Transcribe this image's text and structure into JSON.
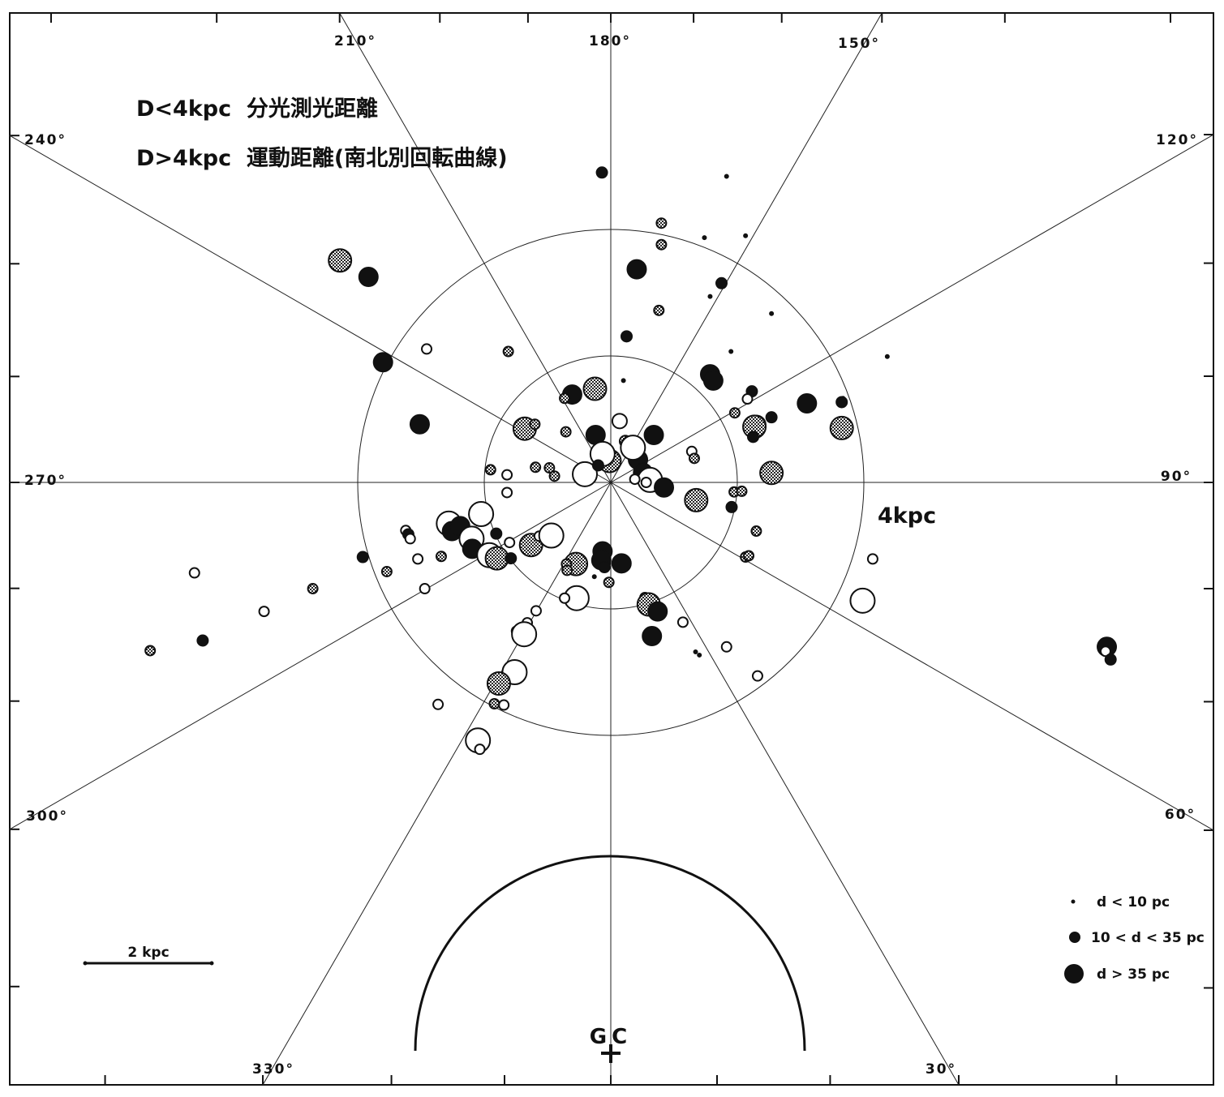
{
  "chart_data": {
    "type": "scatter",
    "title": "",
    "notes": [
      "D<4kpc  分光測光距離",
      "D>4kpc  運動距離(南北別回転曲線)"
    ],
    "projection": "polar, Sun at center, galactic longitude lines every 30°, galactic center toward bottom",
    "longitude_labels": [
      {
        "deg": 180,
        "label": "180°"
      },
      {
        "deg": 210,
        "label": "210°"
      },
      {
        "deg": 150,
        "label": "150°"
      },
      {
        "deg": 240,
        "label": "240°"
      },
      {
        "deg": 120,
        "label": "120°"
      },
      {
        "deg": 270,
        "label": "270°"
      },
      {
        "deg": 90,
        "label": "90°"
      },
      {
        "deg": 300,
        "label": "300°"
      },
      {
        "deg": 60,
        "label": "60°"
      },
      {
        "deg": 330,
        "label": "330°"
      },
      {
        "deg": 30,
        "label": "30°"
      }
    ],
    "circles": [
      {
        "radius_kpc": 2,
        "label": ""
      },
      {
        "radius_kpc": 4,
        "label": "4kpc"
      }
    ],
    "galactic_center": {
      "label": "GC",
      "distance_kpc": 8.5
    },
    "inner_arc_radius_kpc": 3.0,
    "scale_bar": {
      "length_kpc": 2,
      "label": "2 kpc"
    },
    "legend": {
      "placement": "bottom-right",
      "entries": [
        {
          "label": "d < 10  pc",
          "size": "small"
        },
        {
          "label": "10 < d < 35 pc",
          "size": "medium"
        },
        {
          "label": "d  >  35 pc",
          "size": "large"
        }
      ]
    },
    "marker_styles": [
      "filled",
      "open",
      "hatched"
    ],
    "points": [
      {
        "x": -0.14,
        "y": 4.9,
        "size": "medium",
        "style": "filled"
      },
      {
        "x": 1.83,
        "y": 4.84,
        "size": "small",
        "style": "filled"
      },
      {
        "x": 0.8,
        "y": 4.1,
        "size": "small",
        "style": "hatched"
      },
      {
        "x": 0.8,
        "y": 3.76,
        "size": "small",
        "style": "hatched"
      },
      {
        "x": 1.48,
        "y": 3.87,
        "size": "small",
        "style": "filled"
      },
      {
        "x": 2.13,
        "y": 3.9,
        "size": "small",
        "style": "filled"
      },
      {
        "x": 0.41,
        "y": 3.37,
        "size": "large",
        "style": "filled"
      },
      {
        "x": 1.75,
        "y": 3.15,
        "size": "medium",
        "style": "filled"
      },
      {
        "x": 0.76,
        "y": 2.72,
        "size": "small",
        "style": "hatched"
      },
      {
        "x": 1.57,
        "y": 2.94,
        "size": "small",
        "style": "filled"
      },
      {
        "x": 2.54,
        "y": 2.67,
        "size": "small",
        "style": "filled"
      },
      {
        "x": 0.25,
        "y": 2.31,
        "size": "medium",
        "style": "filled"
      },
      {
        "x": 1.9,
        "y": 2.07,
        "size": "small",
        "style": "filled"
      },
      {
        "x": 4.37,
        "y": 1.99,
        "size": "small",
        "style": "filled"
      },
      {
        "x": 1.57,
        "y": 1.71,
        "size": "large",
        "style": "filled"
      },
      {
        "x": 1.62,
        "y": 1.61,
        "size": "large",
        "style": "filled"
      },
      {
        "x": 2.23,
        "y": 1.44,
        "size": "medium",
        "style": "filled"
      },
      {
        "x": 3.1,
        "y": 1.25,
        "size": "large",
        "style": "filled"
      },
      {
        "x": 3.67,
        "y": 1.33,
        "size": "small",
        "style": "filled"
      },
      {
        "x": 3.65,
        "y": 1.27,
        "size": "medium",
        "style": "filled"
      },
      {
        "x": 2.16,
        "y": 1.32,
        "size": "small",
        "style": "open"
      },
      {
        "x": 1.96,
        "y": 1.1,
        "size": "small",
        "style": "hatched"
      },
      {
        "x": 2.54,
        "y": 1.03,
        "size": "medium",
        "style": "filled"
      },
      {
        "x": 2.3,
        "y": 0.91,
        "size": "large",
        "style": "filled"
      },
      {
        "x": 2.27,
        "y": 0.88,
        "size": "large",
        "style": "hatched"
      },
      {
        "x": 2.25,
        "y": 0.72,
        "size": "medium",
        "style": "filled"
      },
      {
        "x": 3.65,
        "y": 0.86,
        "size": "large",
        "style": "hatched"
      },
      {
        "x": 1.28,
        "y": 0.49,
        "size": "small",
        "style": "open"
      },
      {
        "x": 1.32,
        "y": 0.38,
        "size": "small",
        "style": "hatched"
      },
      {
        "x": 2.54,
        "y": 0.15,
        "size": "large",
        "style": "hatched"
      },
      {
        "x": 1.95,
        "y": -0.15,
        "size": "small",
        "style": "hatched"
      },
      {
        "x": 2.07,
        "y": -0.14,
        "size": "small",
        "style": "hatched"
      },
      {
        "x": 1.91,
        "y": -0.39,
        "size": "medium",
        "style": "filled"
      },
      {
        "x": 1.35,
        "y": -0.28,
        "size": "large",
        "style": "hatched"
      },
      {
        "x": 2.3,
        "y": -0.77,
        "size": "small",
        "style": "hatched"
      },
      {
        "x": 2.13,
        "y": -1.18,
        "size": "small",
        "style": "hatched"
      },
      {
        "x": 2.18,
        "y": -1.16,
        "size": "small",
        "style": "hatched"
      },
      {
        "x": 0.68,
        "y": 0.75,
        "size": "large",
        "style": "filled"
      },
      {
        "x": 0.43,
        "y": 0.36,
        "size": "large",
        "style": "filled"
      },
      {
        "x": 0.51,
        "y": 0.15,
        "size": "large",
        "style": "filled"
      },
      {
        "x": 0.62,
        "y": 0.04,
        "size": "large",
        "style": "open"
      },
      {
        "x": 0.84,
        "y": -0.08,
        "size": "large",
        "style": "filled"
      },
      {
        "x": 0.38,
        "y": 0.05,
        "size": "small",
        "style": "open"
      },
      {
        "x": 0.56,
        "y": 0.0,
        "size": "small",
        "style": "open"
      },
      {
        "x": 0.23,
        "y": 0.65,
        "size": "medium",
        "style": "hatched"
      },
      {
        "x": 0.2,
        "y": 1.61,
        "size": "small",
        "style": "filled"
      },
      {
        "x": -0.24,
        "y": 0.75,
        "size": "large",
        "style": "filled"
      },
      {
        "x": 0.35,
        "y": 0.55,
        "size": "large",
        "style": "open"
      },
      {
        "x": 0.14,
        "y": 0.97,
        "size": "medium",
        "style": "open"
      },
      {
        "x": -0.02,
        "y": 0.34,
        "size": "large",
        "style": "hatched"
      },
      {
        "x": -0.13,
        "y": 0.45,
        "size": "large",
        "style": "open"
      },
      {
        "x": -0.41,
        "y": 0.13,
        "size": "large",
        "style": "open"
      },
      {
        "x": -0.2,
        "y": 0.27,
        "size": "medium",
        "style": "filled"
      },
      {
        "x": -0.25,
        "y": 1.48,
        "size": "large",
        "style": "hatched"
      },
      {
        "x": -0.61,
        "y": 1.39,
        "size": "large",
        "style": "filled"
      },
      {
        "x": -0.73,
        "y": 1.33,
        "size": "small",
        "style": "hatched"
      },
      {
        "x": -1.36,
        "y": 0.85,
        "size": "large",
        "style": "hatched"
      },
      {
        "x": -1.2,
        "y": 0.92,
        "size": "small",
        "style": "hatched"
      },
      {
        "x": -0.71,
        "y": 0.8,
        "size": "small",
        "style": "hatched"
      },
      {
        "x": -1.19,
        "y": 0.24,
        "size": "small",
        "style": "hatched"
      },
      {
        "x": -0.97,
        "y": 0.23,
        "size": "small",
        "style": "hatched"
      },
      {
        "x": -0.89,
        "y": 0.1,
        "size": "small",
        "style": "hatched"
      },
      {
        "x": -1.9,
        "y": 0.2,
        "size": "small",
        "style": "hatched"
      },
      {
        "x": -1.64,
        "y": 0.12,
        "size": "small",
        "style": "open"
      },
      {
        "x": -1.64,
        "y": -0.16,
        "size": "small",
        "style": "open"
      },
      {
        "x": -2.05,
        "y": -0.5,
        "size": "large",
        "style": "open"
      },
      {
        "x": -2.56,
        "y": -0.65,
        "size": "large",
        "style": "open"
      },
      {
        "x": -2.51,
        "y": -0.77,
        "size": "large",
        "style": "filled"
      },
      {
        "x": -2.38,
        "y": -0.69,
        "size": "large",
        "style": "filled"
      },
      {
        "x": -2.2,
        "y": -0.89,
        "size": "large",
        "style": "open"
      },
      {
        "x": -2.19,
        "y": -1.05,
        "size": "large",
        "style": "filled"
      },
      {
        "x": -1.92,
        "y": -1.15,
        "size": "large",
        "style": "open"
      },
      {
        "x": -1.8,
        "y": -1.2,
        "size": "large",
        "style": "hatched"
      },
      {
        "x": -1.58,
        "y": -1.2,
        "size": "medium",
        "style": "filled"
      },
      {
        "x": -1.81,
        "y": -0.81,
        "size": "medium",
        "style": "filled"
      },
      {
        "x": -1.6,
        "y": -0.95,
        "size": "small",
        "style": "open"
      },
      {
        "x": -1.26,
        "y": -0.99,
        "size": "large",
        "style": "hatched"
      },
      {
        "x": -1.13,
        "y": -0.85,
        "size": "small",
        "style": "open"
      },
      {
        "x": -0.94,
        "y": -0.84,
        "size": "large",
        "style": "open"
      },
      {
        "x": -3.24,
        "y": -0.76,
        "size": "small",
        "style": "open"
      },
      {
        "x": -3.2,
        "y": -0.82,
        "size": "medium",
        "style": "filled"
      },
      {
        "x": -3.17,
        "y": -0.89,
        "size": "small",
        "style": "open"
      },
      {
        "x": -3.92,
        "y": -1.18,
        "size": "medium",
        "style": "filled"
      },
      {
        "x": -2.68,
        "y": -1.17,
        "size": "small",
        "style": "hatched"
      },
      {
        "x": -3.05,
        "y": -1.21,
        "size": "small",
        "style": "open"
      },
      {
        "x": -3.54,
        "y": -1.41,
        "size": "small",
        "style": "hatched"
      },
      {
        "x": -2.94,
        "y": -1.68,
        "size": "small",
        "style": "open"
      },
      {
        "x": -6.58,
        "y": -1.43,
        "size": "small",
        "style": "open"
      },
      {
        "x": -4.71,
        "y": -1.68,
        "size": "small",
        "style": "hatched"
      },
      {
        "x": -5.48,
        "y": -2.04,
        "size": "small",
        "style": "open"
      },
      {
        "x": -7.28,
        "y": -2.66,
        "size": "small",
        "style": "hatched"
      },
      {
        "x": -6.45,
        "y": -2.5,
        "size": "medium",
        "style": "filled"
      },
      {
        "x": -0.55,
        "y": -1.29,
        "size": "large",
        "style": "hatched"
      },
      {
        "x": -0.13,
        "y": -1.09,
        "size": "large",
        "style": "filled"
      },
      {
        "x": -0.15,
        "y": -1.23,
        "size": "large",
        "style": "filled"
      },
      {
        "x": -0.1,
        "y": -1.34,
        "size": "medium",
        "style": "filled"
      },
      {
        "x": 0.17,
        "y": -1.28,
        "size": "large",
        "style": "filled"
      },
      {
        "x": -0.7,
        "y": -1.29,
        "size": "small",
        "style": "hatched"
      },
      {
        "x": -0.69,
        "y": -1.39,
        "size": "small",
        "style": "hatched"
      },
      {
        "x": -0.54,
        "y": -1.83,
        "size": "large",
        "style": "open"
      },
      {
        "x": -0.73,
        "y": -1.83,
        "size": "small",
        "style": "open"
      },
      {
        "x": -0.03,
        "y": -1.58,
        "size": "small",
        "style": "hatched"
      },
      {
        "x": -0.26,
        "y": -1.49,
        "size": "small",
        "style": "filled"
      },
      {
        "x": 0.54,
        "y": -1.82,
        "size": "small",
        "style": "hatched"
      },
      {
        "x": 0.6,
        "y": -1.93,
        "size": "large",
        "style": "hatched"
      },
      {
        "x": 0.74,
        "y": -2.04,
        "size": "large",
        "style": "filled"
      },
      {
        "x": 0.65,
        "y": -2.43,
        "size": "large",
        "style": "filled"
      },
      {
        "x": 1.14,
        "y": -2.21,
        "size": "small",
        "style": "open"
      },
      {
        "x": 1.83,
        "y": -2.6,
        "size": "small",
        "style": "open"
      },
      {
        "x": 1.34,
        "y": -2.68,
        "size": "small",
        "style": "filled"
      },
      {
        "x": 2.32,
        "y": -3.06,
        "size": "small",
        "style": "open"
      },
      {
        "x": -1.18,
        "y": -2.03,
        "size": "small",
        "style": "open"
      },
      {
        "x": -1.32,
        "y": -2.22,
        "size": "small",
        "style": "open"
      },
      {
        "x": -1.49,
        "y": -2.35,
        "size": "small",
        "style": "open"
      },
      {
        "x": -1.37,
        "y": -2.4,
        "size": "large",
        "style": "open"
      },
      {
        "x": -1.52,
        "y": -3.0,
        "size": "large",
        "style": "open"
      },
      {
        "x": -1.77,
        "y": -3.18,
        "size": "large",
        "style": "hatched"
      },
      {
        "x": -1.84,
        "y": -3.5,
        "size": "small",
        "style": "hatched"
      },
      {
        "x": -1.69,
        "y": -3.52,
        "size": "small",
        "style": "open"
      },
      {
        "x": -2.1,
        "y": -4.08,
        "size": "large",
        "style": "open"
      },
      {
        "x": -2.07,
        "y": -4.22,
        "size": "small",
        "style": "open"
      },
      {
        "x": -2.73,
        "y": -3.51,
        "size": "small",
        "style": "open"
      },
      {
        "x": 1.4,
        "y": -2.73,
        "size": "small",
        "style": "filled"
      },
      {
        "x": 4.14,
        "y": -1.21,
        "size": "small",
        "style": "open"
      },
      {
        "x": 3.98,
        "y": -1.87,
        "size": "large",
        "style": "open"
      },
      {
        "x": 7.84,
        "y": -2.6,
        "size": "large",
        "style": "filled"
      },
      {
        "x": 7.82,
        "y": -2.67,
        "size": "small",
        "style": "open"
      },
      {
        "x": 7.9,
        "y": -2.8,
        "size": "medium",
        "style": "filled"
      },
      {
        "x": -3.83,
        "y": 3.25,
        "size": "large",
        "style": "filled"
      },
      {
        "x": -4.28,
        "y": 3.51,
        "size": "large",
        "style": "hatched"
      },
      {
        "x": -3.6,
        "y": 1.9,
        "size": "large",
        "style": "filled"
      },
      {
        "x": -3.02,
        "y": 0.92,
        "size": "large",
        "style": "filled"
      },
      {
        "x": -2.91,
        "y": 2.11,
        "size": "small",
        "style": "open"
      },
      {
        "x": -1.62,
        "y": 2.07,
        "size": "small",
        "style": "hatched"
      }
    ]
  }
}
